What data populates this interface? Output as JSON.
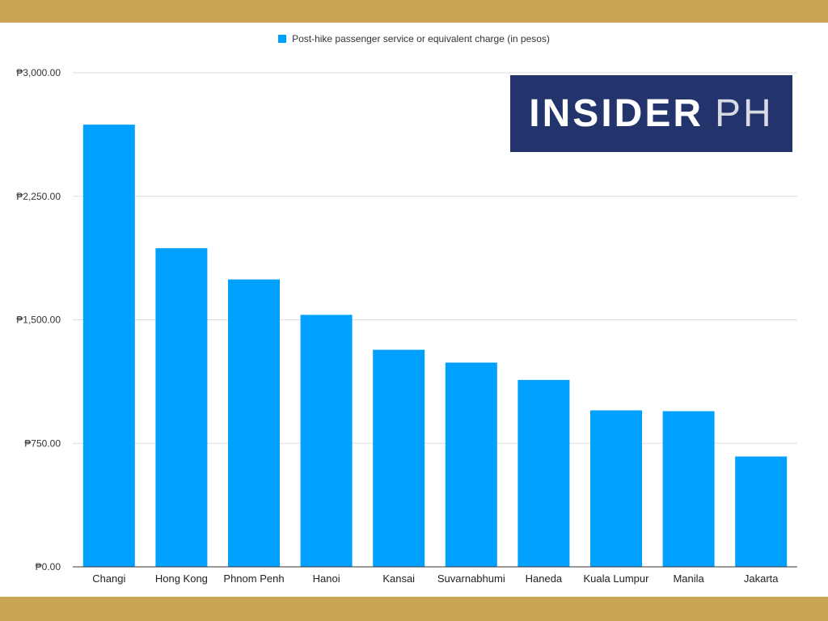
{
  "logo": {
    "main": "INSIDER",
    "suffix": "PH"
  },
  "colors": {
    "band": "#c9a554",
    "bar": "#00a0ff",
    "logo_bg": "#22346b",
    "grid": "#dddddd"
  },
  "chart_data": {
    "type": "bar",
    "title": "",
    "xlabel": "",
    "ylabel": "",
    "legend": "Post-hike passenger service or equivalent charge (in pesos)",
    "legend_position": "top-center",
    "categories": [
      "Changi",
      "Hong Kong",
      "Phnom Penh",
      "Hanoi",
      "Kansai",
      "Suvarnabhumi",
      "Haneda",
      "Kuala Lumpur",
      "Manila",
      "Jakarta"
    ],
    "values": [
      2685,
      1935,
      1745,
      1530,
      1318,
      1240,
      1135,
      950,
      945,
      670
    ],
    "ylim": [
      0,
      3000
    ],
    "yticks": [
      0,
      750,
      1500,
      2250,
      3000
    ],
    "ytick_labels": [
      "₱0.00",
      "₱750.00",
      "₱1,500.00",
      "₱2,250.00",
      "₱3,000.00"
    ],
    "grid": true
  }
}
